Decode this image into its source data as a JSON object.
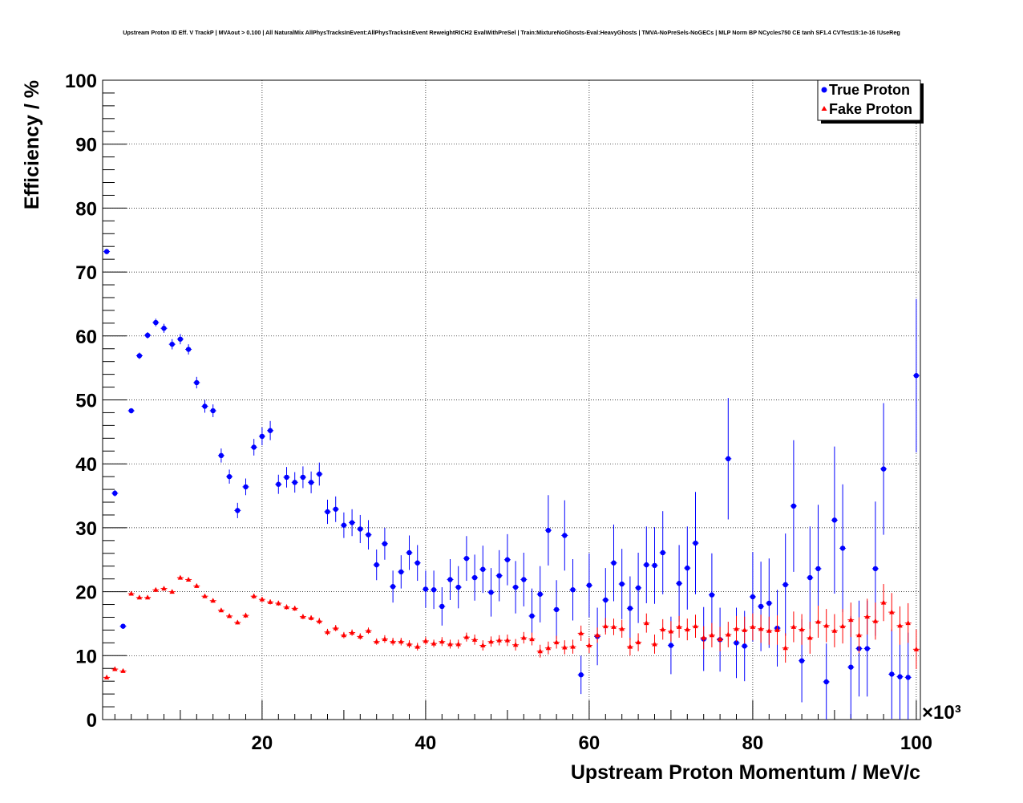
{
  "chart_data": {
    "type": "scatter",
    "title": "Upstream Proton ID Eff. V TrackP | MVAout > 0.100 | All NaturalMix AllPhysTracksInEvent:AllPhysTracksInEvent ReweightRICH2 EvalWithPreSel | Train:MixtureNoGhosts-Eval:HeavyGhosts | TMVA-NoPreSels-NoGECs | MLP Norm BP NCycles750 CE tanh SF1.4 CVTest15:1e-16 !UseReg",
    "xlabel": "Upstream Proton Momentum / MeV/c",
    "ylabel": "Efficiency / %",
    "x_multiplier": "×10³",
    "xlim": [
      0.5,
      100.5
    ],
    "ylim": [
      0,
      100
    ],
    "xticks": [
      20,
      40,
      60,
      80,
      100
    ],
    "xtick_labels": [
      "20",
      "40",
      "60",
      "80",
      "100"
    ],
    "yticks": [
      0,
      10,
      20,
      30,
      40,
      50,
      60,
      70,
      80,
      90,
      100
    ],
    "ytick_labels": [
      "0",
      "10",
      "20",
      "30",
      "40",
      "50",
      "60",
      "70",
      "80",
      "90",
      "100"
    ],
    "grid": true,
    "legend_position": "top-right",
    "x": [
      1,
      2,
      3,
      4,
      5,
      6,
      7,
      8,
      9,
      10,
      11,
      12,
      13,
      14,
      15,
      16,
      17,
      18,
      19,
      20,
      21,
      22,
      23,
      24,
      25,
      26,
      27,
      28,
      29,
      30,
      31,
      32,
      33,
      34,
      35,
      36,
      37,
      38,
      39,
      40,
      41,
      42,
      43,
      44,
      45,
      46,
      47,
      48,
      49,
      50,
      51,
      52,
      53,
      54,
      55,
      56,
      57,
      58,
      59,
      60,
      61,
      62,
      63,
      64,
      65,
      66,
      67,
      68,
      69,
      70,
      71,
      72,
      73,
      74,
      75,
      76,
      77,
      78,
      79,
      80,
      81,
      82,
      83,
      84,
      85,
      86,
      87,
      88,
      89,
      90,
      91,
      92,
      93,
      94,
      95,
      96,
      97,
      98,
      99,
      100
    ],
    "series": [
      {
        "name": "True Proton",
        "color": "#0000ff",
        "marker": "circle",
        "values": [
          73.2,
          35.4,
          14.6,
          48.3,
          56.9,
          60.1,
          62.1,
          61.2,
          58.7,
          59.5,
          57.9,
          52.7,
          49.0,
          48.3,
          41.3,
          38.0,
          32.7,
          36.4,
          42.6,
          44.3,
          45.2,
          36.8,
          37.9,
          37.1,
          37.9,
          37.1,
          38.4,
          32.5,
          32.9,
          30.4,
          30.8,
          29.8,
          28.9,
          24.2,
          27.5,
          20.8,
          23.1,
          26.1,
          24.5,
          20.4,
          20.3,
          17.7,
          21.9,
          20.7,
          25.2,
          22.2,
          23.5,
          19.9,
          22.5,
          25.0,
          20.7,
          21.9,
          16.2,
          19.6,
          29.6,
          17.2,
          28.8,
          20.3,
          7.0,
          21.0,
          13.0,
          18.7,
          24.5,
          21.2,
          17.4,
          20.6,
          24.2,
          24.1,
          26.1,
          11.6,
          21.3,
          23.7,
          27.6,
          12.6,
          19.5,
          12.5,
          40.8,
          12.0,
          11.5,
          19.2,
          17.7,
          18.2,
          14.3,
          21.1,
          33.4,
          9.2,
          22.2,
          23.6,
          5.9,
          31.2,
          26.8,
          8.2,
          11.1,
          11.1,
          23.6,
          39.2,
          7.1,
          6.7,
          6.6,
          53.8
        ],
        "errors": [
          0.4,
          0.5,
          0.4,
          0.4,
          0.5,
          0.5,
          0.6,
          0.7,
          0.8,
          0.8,
          0.8,
          0.9,
          1.0,
          1.0,
          1.1,
          1.1,
          1.2,
          1.3,
          1.3,
          1.4,
          1.5,
          1.5,
          1.6,
          1.6,
          1.7,
          1.7,
          1.8,
          1.9,
          2.0,
          2.0,
          2.1,
          2.2,
          2.3,
          2.4,
          2.5,
          2.5,
          2.6,
          2.7,
          2.8,
          2.9,
          3.0,
          3.0,
          3.2,
          3.3,
          3.5,
          3.6,
          3.7,
          3.8,
          4.0,
          4.0,
          4.1,
          4.2,
          4.3,
          4.4,
          5.5,
          4.6,
          5.5,
          4.8,
          3.0,
          5.0,
          4.5,
          5.0,
          6.0,
          5.5,
          5.0,
          5.5,
          6.0,
          6.0,
          6.5,
          4.5,
          6.0,
          6.5,
          8.0,
          5.0,
          6.5,
          5.0,
          9.5,
          5.5,
          5.5,
          7.0,
          7.0,
          7.0,
          6.0,
          8.0,
          10.3,
          6.5,
          8.0,
          10.0,
          6.0,
          11.5,
          10.0,
          8.0,
          7.5,
          7.5,
          10.5,
          10.3,
          7.0,
          7.0,
          7.0,
          12.0
        ]
      },
      {
        "name": "Fake Proton",
        "color": "#ff0000",
        "marker": "triangle",
        "values": [
          6.6,
          7.9,
          7.6,
          19.7,
          19.1,
          19.1,
          20.3,
          20.5,
          20.0,
          22.2,
          21.9,
          20.9,
          19.3,
          18.6,
          17.1,
          16.2,
          15.2,
          16.3,
          19.3,
          18.8,
          18.4,
          18.2,
          17.6,
          17.4,
          16.1,
          15.9,
          15.4,
          13.7,
          14.3,
          13.2,
          13.6,
          13.0,
          13.9,
          12.2,
          12.6,
          12.2,
          12.2,
          11.8,
          11.4,
          12.3,
          11.9,
          12.2,
          11.8,
          11.8,
          12.9,
          12.5,
          11.6,
          12.2,
          12.4,
          12.4,
          11.7,
          12.8,
          12.6,
          10.7,
          11.2,
          12.1,
          11.3,
          11.4,
          13.5,
          11.6,
          13.2,
          14.6,
          14.5,
          14.2,
          11.4,
          12.1,
          15.1,
          11.8,
          14.1,
          13.8,
          14.5,
          14.1,
          14.6,
          12.8,
          13.2,
          12.6,
          13.3,
          14.2,
          14.0,
          14.5,
          14.2,
          13.9,
          14.0,
          11.2,
          14.5,
          14.1,
          12.8,
          15.3,
          14.7,
          13.9,
          14.6,
          15.6,
          13.2,
          16.1,
          15.4,
          18.3,
          16.8,
          14.7,
          15.1,
          11.0
        ],
        "errors": [
          0.2,
          0.2,
          0.2,
          0.2,
          0.2,
          0.2,
          0.2,
          0.2,
          0.2,
          0.3,
          0.3,
          0.3,
          0.3,
          0.3,
          0.3,
          0.3,
          0.3,
          0.4,
          0.4,
          0.4,
          0.4,
          0.4,
          0.4,
          0.4,
          0.4,
          0.4,
          0.5,
          0.5,
          0.5,
          0.5,
          0.5,
          0.5,
          0.5,
          0.5,
          0.6,
          0.6,
          0.6,
          0.6,
          0.6,
          0.6,
          0.6,
          0.7,
          0.7,
          0.7,
          0.7,
          0.8,
          0.8,
          0.8,
          0.8,
          0.9,
          0.9,
          0.9,
          1.0,
          1.0,
          1.0,
          1.0,
          1.1,
          1.1,
          1.2,
          1.2,
          1.2,
          1.3,
          1.3,
          1.4,
          1.4,
          1.4,
          1.5,
          1.5,
          1.6,
          1.6,
          1.7,
          1.7,
          1.8,
          1.8,
          1.9,
          1.9,
          2.0,
          2.0,
          2.1,
          2.1,
          2.2,
          2.2,
          2.3,
          2.3,
          2.4,
          2.4,
          2.5,
          2.5,
          2.6,
          2.6,
          2.7,
          2.7,
          2.8,
          2.8,
          2.9,
          2.9,
          3.0,
          3.0,
          3.1,
          3.1
        ]
      }
    ]
  }
}
